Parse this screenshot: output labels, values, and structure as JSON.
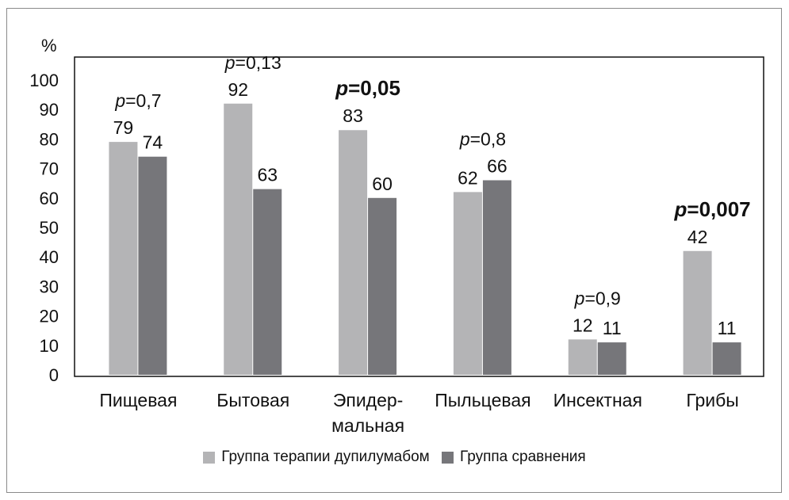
{
  "chart_data": {
    "type": "bar",
    "ylabel": "%",
    "ylim": [
      0,
      100
    ],
    "yticks": [
      "0",
      "10",
      "20",
      "30",
      "40",
      "50",
      "60",
      "70",
      "80",
      "90",
      "100"
    ],
    "categories": [
      [
        "Пищевая"
      ],
      [
        "Бытовая"
      ],
      [
        "Эпидер-",
        "мальная"
      ],
      [
        "Пыльцевая"
      ],
      [
        "Инсектная"
      ],
      [
        "Грибы"
      ]
    ],
    "series": [
      {
        "name": "Группа терапии дупилумабом",
        "color": "#b4b4b6",
        "values": [
          79,
          92,
          83,
          62,
          12,
          42
        ]
      },
      {
        "name": "Группа сравнения",
        "color": "#76767a",
        "values": [
          74,
          63,
          60,
          66,
          11,
          11
        ]
      }
    ],
    "annotations": [
      {
        "category": 0,
        "p_label": "p",
        "value": "=0,7",
        "bold": false
      },
      {
        "category": 1,
        "p_label": "p",
        "value": "=0,13",
        "bold": false
      },
      {
        "category": 2,
        "p_label": "p",
        "value": "=0,05",
        "bold": true
      },
      {
        "category": 3,
        "p_label": "p",
        "value": "=0,8",
        "bold": false
      },
      {
        "category": 4,
        "p_label": "p",
        "value": "=0,9",
        "bold": false
      },
      {
        "category": 5,
        "p_label": "p",
        "value": "=0,007",
        "bold": true
      }
    ]
  }
}
